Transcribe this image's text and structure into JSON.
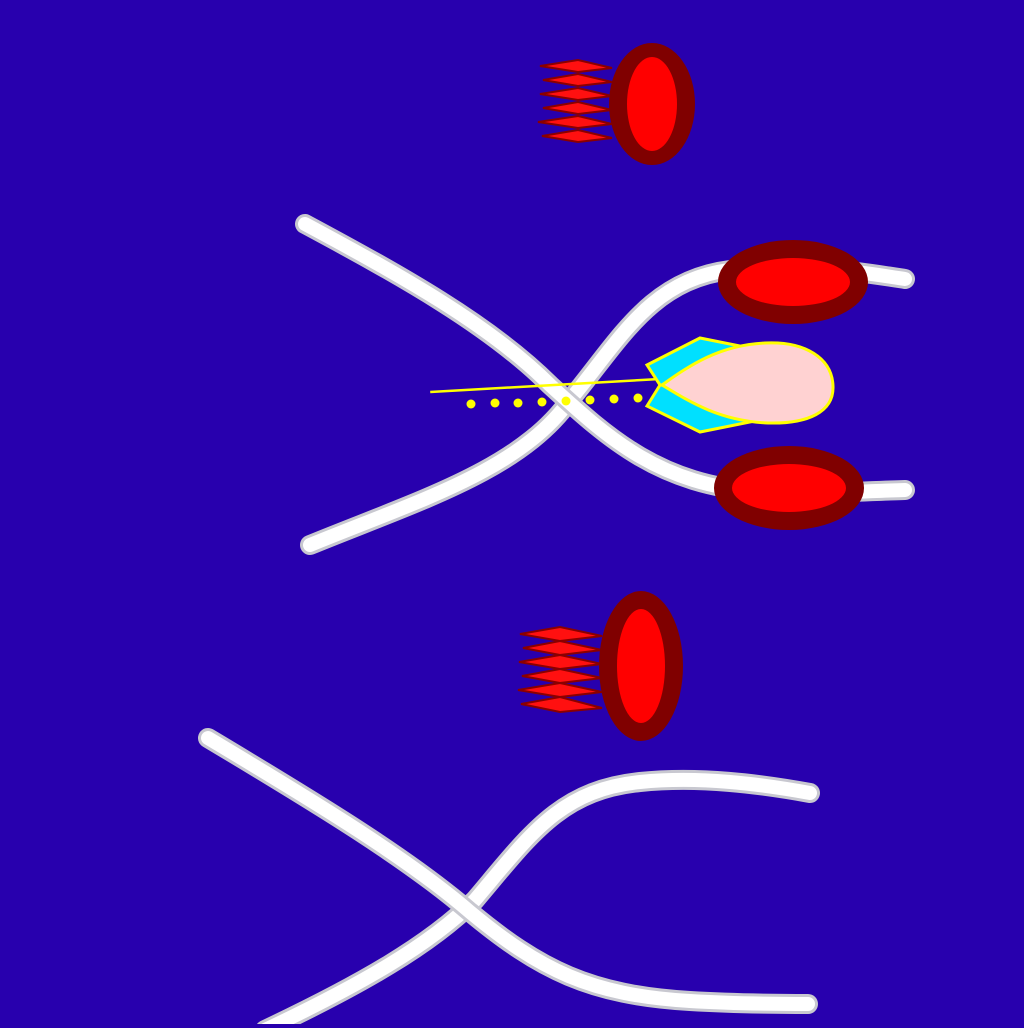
{
  "colors": {
    "background": "#2800AE",
    "fiber": "#FFFFFF",
    "fiber_edge": "#C8C8D0",
    "ring_outer": "#800000",
    "ring_inner": "#FF0000",
    "flame_fill": "#FF1010",
    "flame_edge": "#8A0000",
    "nucleus_fill": "#FFD2D2",
    "nucleus_edge": "#FFFF00",
    "wing_fill": "#00E0FF",
    "trail": "#FFFF00"
  },
  "icons": {
    "top_emitter": "red-ring-jet-icon",
    "bottom_emitter": "red-ring-jet-icon",
    "upper_ring": "red-ring-icon",
    "lower_ring": "red-ring-icon",
    "probe": "winged-nucleus-icon"
  },
  "panels": [
    {
      "name": "upper-panel",
      "rings_on_fiber_ends": 2,
      "has_probe": true,
      "trail_dots": 8
    },
    {
      "name": "lower-panel",
      "rings_on_fiber_ends": 0,
      "has_probe": false,
      "trail_dots": 0
    }
  ]
}
